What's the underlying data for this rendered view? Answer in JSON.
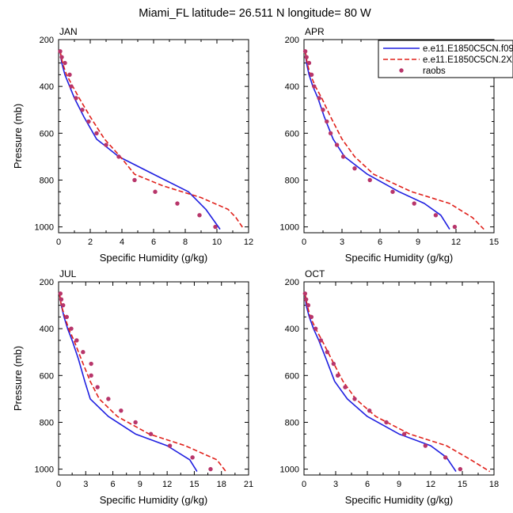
{
  "title": "Miami_FL  latitude= 26.511 N longitude= 80 W",
  "legend": {
    "items": [
      {
        "label": "e.e11.E1850C5CN.f09",
        "style": "solid",
        "color": "#1f1fe0"
      },
      {
        "label": "e.e11.E1850C5CN.2X",
        "style": "dashed",
        "color": "#e0201a"
      },
      {
        "label": "raobs",
        "style": "marker",
        "color": "#b8356a"
      }
    ]
  },
  "chart_data": [
    {
      "type": "line",
      "panel": "JAN",
      "xlabel": "Specific Humidity (g/kg)",
      "ylabel": "Pressure (mb)",
      "xlim": [
        0,
        12
      ],
      "ylim": [
        1025,
        200
      ],
      "xticks": [
        0,
        2,
        4,
        6,
        8,
        10,
        12
      ],
      "xtick_labels": [
        "0",
        "2",
        "4",
        "6",
        "8",
        "10",
        "12"
      ],
      "yticks": [
        200,
        400,
        600,
        800,
        1000
      ],
      "ytick_labels": [
        "200",
        "400",
        "600",
        "800",
        "1000"
      ],
      "series": [
        {
          "name": "e.e11.E1850C5CN.f09",
          "style": "solid",
          "color": "#1f1fe0",
          "x": [
            0.1,
            0.2,
            0.4,
            0.7,
            1.0,
            1.6,
            2.4,
            3.8,
            6.0,
            8.2,
            9.3,
            10.2
          ],
          "y": [
            250,
            300,
            350,
            400,
            450,
            530,
            625,
            700,
            775,
            850,
            925,
            1010
          ]
        },
        {
          "name": "e.e11.E1850C5CN.2X",
          "style": "dashed",
          "color": "#e0201a",
          "x": [
            0.1,
            0.25,
            0.5,
            0.9,
            1.3,
            2.0,
            2.9,
            3.9,
            4.8,
            6.6,
            9.0,
            10.7,
            11.2,
            11.7
          ],
          "y": [
            250,
            300,
            350,
            400,
            450,
            530,
            625,
            700,
            775,
            825,
            875,
            925,
            960,
            1010
          ]
        },
        {
          "name": "raobs",
          "style": "marker",
          "color": "#b8356a",
          "x": [
            0.1,
            0.2,
            0.4,
            0.7,
            0.8,
            1.1,
            1.5,
            1.9,
            2.4,
            3.0,
            3.8,
            4.8,
            6.1,
            7.5,
            8.9,
            9.9
          ],
          "y": [
            250,
            275,
            300,
            350,
            400,
            450,
            500,
            550,
            600,
            650,
            700,
            800,
            850,
            900,
            950,
            1000
          ]
        }
      ]
    },
    {
      "type": "line",
      "panel": "APR",
      "xlabel": "Specific Humidity (g/kg)",
      "ylabel": "Pressure (mb)",
      "xlim": [
        0,
        15
      ],
      "ylim": [
        1025,
        200
      ],
      "xticks": [
        0,
        3,
        6,
        9,
        12,
        15
      ],
      "xtick_labels": [
        "0",
        "3",
        "6",
        "9",
        "12",
        "15"
      ],
      "yticks": [
        200,
        400,
        600,
        800,
        1000
      ],
      "ytick_labels": [
        "200",
        "400",
        "600",
        "800",
        "1000"
      ],
      "series": [
        {
          "name": "e.e11.E1850C5CN.f09",
          "style": "solid",
          "color": "#1f1fe0",
          "x": [
            0.1,
            0.2,
            0.4,
            0.7,
            1.1,
            1.6,
            2.3,
            3.2,
            5.0,
            7.5,
            9.5,
            10.8,
            11.5
          ],
          "y": [
            250,
            300,
            350,
            400,
            450,
            530,
            625,
            700,
            775,
            850,
            900,
            950,
            1010
          ]
        },
        {
          "name": "e.e11.E1850C5CN.2X",
          "style": "dashed",
          "color": "#e0201a",
          "x": [
            0.1,
            0.25,
            0.5,
            0.9,
            1.4,
            2.1,
            3.0,
            4.0,
            5.5,
            8.5,
            11.5,
            13.3,
            14.2
          ],
          "y": [
            250,
            300,
            350,
            400,
            450,
            530,
            625,
            700,
            775,
            850,
            900,
            960,
            1010
          ]
        },
        {
          "name": "raobs",
          "style": "marker",
          "color": "#b8356a",
          "x": [
            0.1,
            0.2,
            0.4,
            0.6,
            0.8,
            1.2,
            1.5,
            1.8,
            2.1,
            2.6,
            3.1,
            4.0,
            5.2,
            7.0,
            8.7,
            10.4,
            11.9
          ],
          "y": [
            250,
            275,
            300,
            350,
            400,
            450,
            500,
            550,
            600,
            650,
            700,
            750,
            800,
            850,
            900,
            950,
            1000
          ]
        }
      ]
    },
    {
      "type": "line",
      "panel": "JUL",
      "xlabel": "Specific Humidity (g/kg)",
      "ylabel": "Pressure (mb)",
      "xlim": [
        0,
        21
      ],
      "ylim": [
        1025,
        200
      ],
      "xticks": [
        0,
        3,
        6,
        9,
        12,
        15,
        18,
        21
      ],
      "xtick_labels": [
        "0",
        "3",
        "6",
        "9",
        "12",
        "15",
        "18",
        "21"
      ],
      "yticks": [
        200,
        400,
        600,
        800,
        1000
      ],
      "ytick_labels": [
        "200",
        "400",
        "600",
        "800",
        "1000"
      ],
      "series": [
        {
          "name": "e.e11.E1850C5CN.f09",
          "style": "solid",
          "color": "#1f1fe0",
          "x": [
            0.1,
            0.3,
            0.6,
            1.0,
            1.5,
            2.2,
            2.9,
            3.5,
            5.5,
            8.5,
            12.0,
            14.5,
            15.3
          ],
          "y": [
            250,
            300,
            350,
            400,
            450,
            530,
            625,
            700,
            775,
            850,
            900,
            960,
            1010
          ]
        },
        {
          "name": "e.e11.E1850C5CN.2X",
          "style": "dashed",
          "color": "#e0201a",
          "x": [
            0.1,
            0.3,
            0.7,
            1.1,
            1.7,
            2.5,
            3.5,
            4.5,
            6.5,
            10.0,
            14.0,
            17.5,
            18.5
          ],
          "y": [
            250,
            300,
            350,
            400,
            450,
            530,
            625,
            700,
            775,
            850,
            900,
            960,
            1010
          ]
        },
        {
          "name": "raobs",
          "style": "marker",
          "color": "#b8356a",
          "x": [
            0.2,
            0.3,
            0.5,
            0.9,
            1.4,
            2.0,
            2.7,
            3.6,
            3.6,
            4.3,
            5.5,
            6.9,
            8.5,
            10.2,
            12.3,
            14.8,
            16.8
          ],
          "y": [
            250,
            275,
            300,
            350,
            400,
            450,
            500,
            550,
            600,
            650,
            700,
            750,
            800,
            850,
            900,
            950,
            1000
          ]
        }
      ]
    },
    {
      "type": "line",
      "panel": "OCT",
      "xlabel": "Specific Humidity (g/kg)",
      "ylabel": "Pressure (mb)",
      "xlim": [
        0,
        18
      ],
      "ylim": [
        1025,
        200
      ],
      "xticks": [
        0,
        3,
        6,
        9,
        12,
        15,
        18
      ],
      "xtick_labels": [
        "0",
        "3",
        "6",
        "9",
        "12",
        "15",
        "18"
      ],
      "yticks": [
        200,
        400,
        600,
        800,
        1000
      ],
      "ytick_labels": [
        "200",
        "400",
        "600",
        "800",
        "1000"
      ],
      "series": [
        {
          "name": "e.e11.E1850C5CN.f09",
          "style": "solid",
          "color": "#1f1fe0",
          "x": [
            0.1,
            0.2,
            0.5,
            0.9,
            1.4,
            2.1,
            2.9,
            4.1,
            6.0,
            9.0,
            12.0,
            13.5,
            14.4
          ],
          "y": [
            250,
            300,
            350,
            400,
            450,
            530,
            625,
            700,
            775,
            850,
            900,
            950,
            1010
          ]
        },
        {
          "name": "e.e11.E1850C5CN.2X",
          "style": "dashed",
          "color": "#e0201a",
          "x": [
            0.1,
            0.3,
            0.6,
            1.1,
            1.7,
            2.6,
            3.7,
            4.9,
            6.8,
            10.0,
            13.5,
            15.8,
            17.6
          ],
          "y": [
            250,
            300,
            350,
            400,
            450,
            530,
            625,
            700,
            775,
            850,
            900,
            960,
            1010
          ]
        },
        {
          "name": "raobs",
          "style": "marker",
          "color": "#b8356a",
          "x": [
            0.1,
            0.2,
            0.4,
            0.7,
            1.1,
            1.6,
            2.2,
            2.8,
            3.2,
            3.9,
            4.8,
            6.2,
            7.8,
            9.5,
            11.5,
            13.4,
            14.8
          ],
          "y": [
            250,
            275,
            300,
            350,
            400,
            450,
            500,
            550,
            600,
            650,
            700,
            750,
            800,
            850,
            900,
            950,
            1000
          ]
        }
      ]
    }
  ]
}
